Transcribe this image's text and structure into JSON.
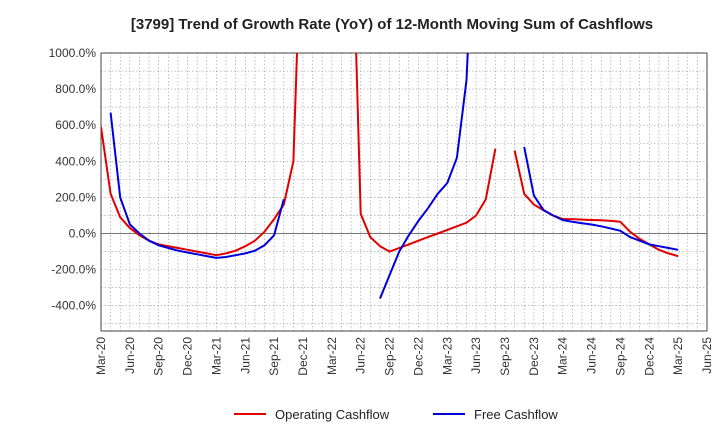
{
  "chart_data": {
    "type": "line",
    "title": "[3799]  Trend of Growth Rate (YoY) of 12-Month Moving Sum of Cashflows",
    "xlabel": "",
    "ylabel": "",
    "x_ticks": [
      "Mar-20",
      "Jun-20",
      "Sep-20",
      "Dec-20",
      "Mar-21",
      "Jun-21",
      "Sep-21",
      "Dec-21",
      "Mar-22",
      "Jun-22",
      "Sep-22",
      "Dec-22",
      "Mar-23",
      "Jun-23",
      "Sep-23",
      "Dec-23",
      "Mar-24",
      "Jun-24",
      "Sep-24",
      "Dec-24",
      "Mar-25",
      "Jun-25"
    ],
    "y_ticks": [
      1000,
      800,
      600,
      400,
      200,
      0,
      -200,
      -400
    ],
    "y_tick_labels": [
      "1000.0%",
      "800.0%",
      "600.0%",
      "400.0%",
      "200.0%",
      "0.0%",
      "-200.0%",
      "-400.0%"
    ],
    "ylim": [
      -540,
      1000
    ],
    "grid": true,
    "legend_position": "bottom",
    "series": [
      {
        "name": "Operating Cashflow",
        "color": "#e00000",
        "points": [
          [
            "Mar-20",
            590
          ],
          [
            "Apr-20",
            220
          ],
          [
            "May-20",
            90
          ],
          [
            "Jun-20",
            30
          ],
          [
            "Jul-20",
            -10
          ],
          [
            "Aug-20",
            -40
          ],
          [
            "Sep-20",
            -60
          ],
          [
            "Oct-20",
            -70
          ],
          [
            "Nov-20",
            -80
          ],
          [
            "Dec-20",
            -90
          ],
          [
            "Jan-21",
            -100
          ],
          [
            "Feb-21",
            -110
          ],
          [
            "Mar-21",
            -120
          ],
          [
            "Apr-21",
            -110
          ],
          [
            "May-21",
            -95
          ],
          [
            "Jun-21",
            -70
          ],
          [
            "Jul-21",
            -40
          ],
          [
            "Aug-21",
            10
          ],
          [
            "Sep-21",
            80
          ],
          [
            "Oct-21",
            160
          ],
          [
            "Nov-21",
            400
          ],
          [
            "Dec-21",
            2000
          ],
          [
            "May-22",
            2000
          ],
          [
            "Jun-22",
            110
          ],
          [
            "Jul-22",
            -20
          ],
          [
            "Aug-22",
            -70
          ],
          [
            "Sep-22",
            -100
          ],
          [
            "Oct-22",
            -80
          ],
          [
            "Nov-22",
            -60
          ],
          [
            "Dec-22",
            -40
          ],
          [
            "Jan-23",
            -20
          ],
          [
            "Feb-23",
            0
          ],
          [
            "Mar-23",
            20
          ],
          [
            "Apr-23",
            40
          ],
          [
            "May-23",
            60
          ],
          [
            "Jun-23",
            100
          ],
          [
            "Jul-23",
            190
          ],
          [
            "Aug-23",
            470
          ],
          null,
          [
            "Oct-23",
            460
          ],
          [
            "Nov-23",
            220
          ],
          [
            "Dec-23",
            160
          ],
          [
            "Jan-24",
            130
          ],
          [
            "Feb-24",
            100
          ],
          [
            "Mar-24",
            80
          ],
          [
            "Apr-24",
            80
          ],
          [
            "May-24",
            77
          ],
          [
            "Jun-24",
            75
          ],
          [
            "Jul-24",
            73
          ],
          [
            "Aug-24",
            70
          ],
          [
            "Sep-24",
            65
          ],
          [
            "Oct-24",
            10
          ],
          [
            "Nov-24",
            -30
          ],
          [
            "Dec-24",
            -60
          ],
          [
            "Jan-25",
            -90
          ],
          [
            "Feb-25",
            -110
          ],
          [
            "Mar-25",
            -125
          ]
        ]
      },
      {
        "name": "Free Cashflow",
        "color": "#0000dd",
        "points": [
          [
            "Apr-20",
            670
          ],
          [
            "May-20",
            200
          ],
          [
            "Jun-20",
            50
          ],
          [
            "Jul-20",
            0
          ],
          [
            "Aug-20",
            -40
          ],
          [
            "Sep-20",
            -65
          ],
          [
            "Oct-20",
            -80
          ],
          [
            "Nov-20",
            -95
          ],
          [
            "Dec-20",
            -105
          ],
          [
            "Jan-21",
            -115
          ],
          [
            "Feb-21",
            -125
          ],
          [
            "Mar-21",
            -135
          ],
          [
            "Apr-21",
            -130
          ],
          [
            "May-21",
            -120
          ],
          [
            "Jun-21",
            -110
          ],
          [
            "Jul-21",
            -95
          ],
          [
            "Aug-21",
            -65
          ],
          [
            "Sep-21",
            -10
          ],
          [
            "Oct-21",
            190
          ],
          null,
          [
            "Aug-22",
            -360
          ],
          [
            "Sep-22",
            -230
          ],
          [
            "Oct-22",
            -100
          ],
          [
            "Nov-22",
            -10
          ],
          [
            "Dec-22",
            70
          ],
          [
            "Jan-23",
            140
          ],
          [
            "Feb-23",
            220
          ],
          [
            "Mar-23",
            280
          ],
          [
            "Apr-23",
            420
          ],
          [
            "May-23",
            850
          ],
          [
            "Jun-23",
            2000
          ],
          null,
          [
            "Nov-23",
            480
          ],
          [
            "Dec-23",
            210
          ],
          [
            "Jan-24",
            130
          ],
          [
            "Feb-24",
            100
          ],
          [
            "Mar-24",
            75
          ],
          [
            "Apr-24",
            65
          ],
          [
            "May-24",
            57
          ],
          [
            "Jun-24",
            50
          ],
          [
            "Jul-24",
            40
          ],
          [
            "Aug-24",
            28
          ],
          [
            "Sep-24",
            15
          ],
          [
            "Oct-24",
            -20
          ],
          [
            "Nov-24",
            -40
          ],
          [
            "Dec-24",
            -60
          ],
          [
            "Jan-25",
            -70
          ],
          [
            "Feb-25",
            -80
          ],
          [
            "Mar-25",
            -90
          ]
        ]
      }
    ]
  }
}
